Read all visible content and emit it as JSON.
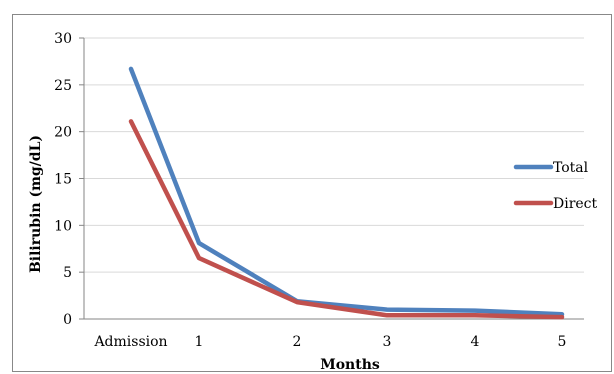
{
  "chart_data": {
    "type": "line",
    "categories": [
      "Admission",
      "1",
      "2",
      "3",
      "4",
      "5"
    ],
    "series": [
      {
        "name": "Total",
        "values": [
          26.7,
          8.1,
          1.9,
          1.0,
          0.9,
          0.5
        ]
      },
      {
        "name": "Direct",
        "values": [
          21.1,
          6.5,
          1.8,
          0.4,
          0.4,
          0.2
        ]
      }
    ],
    "xlabel": "Months",
    "ylabel": "Bilirubin (mg/dL)",
    "ylim": [
      0,
      30
    ],
    "yticks": [
      0,
      5,
      10,
      15,
      20,
      25,
      30
    ],
    "grid": true,
    "legend": "right",
    "colors": [
      "#4f81bd",
      "#c0504d"
    ]
  }
}
